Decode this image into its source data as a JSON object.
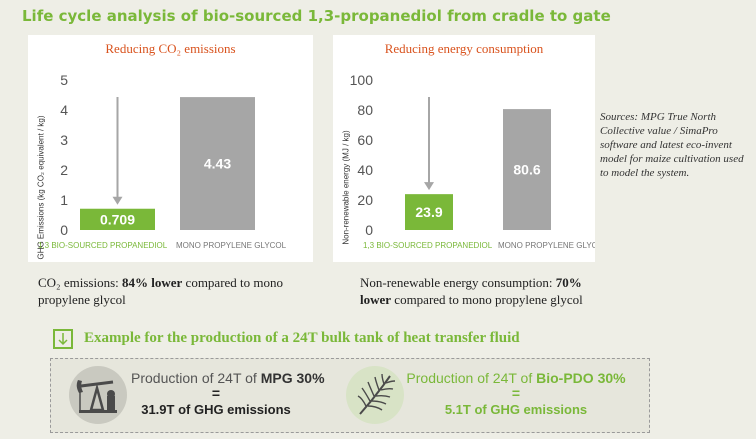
{
  "header": {
    "title": "Life cycle analysis of bio-sourced 1,3-propanediol from cradle to gate"
  },
  "chart_data": [
    {
      "type": "bar",
      "title": "Reducing CO₂ emissions",
      "ylabel": "GHG Emissions (kg CO₂ equivalent / kg)",
      "categories": [
        "1,3 BIO-SOURCED PROPANEDIOL",
        "MONO PROPYLENE GLYCOL"
      ],
      "values": [
        0.709,
        4.43
      ],
      "value_labels": [
        "0.709",
        "4.43"
      ],
      "ylim": [
        0,
        5
      ],
      "yticks": [
        "0",
        "1",
        "2",
        "3",
        "4",
        "5"
      ],
      "colors": [
        "#7ab839",
        "#a6a6a6"
      ],
      "grid": false
    },
    {
      "type": "bar",
      "title": "Reducing energy consumption",
      "ylabel": "Non-renewable energy (MJ / kg)",
      "categories": [
        "1,3 BIO-SOURCED PROPANEDIOL",
        "MONO PROPYLENE GLYCOL"
      ],
      "values": [
        23.9,
        80.6
      ],
      "value_labels": [
        "23.9",
        "80.6"
      ],
      "ylim": [
        0,
        100
      ],
      "yticks": [
        "0",
        "20",
        "40",
        "60",
        "80",
        "100"
      ],
      "colors": [
        "#7ab839",
        "#a6a6a6"
      ],
      "grid": false
    }
  ],
  "captions": {
    "co2_pre": "CO₂ emissions: ",
    "co2_bold": "84% lower",
    "co2_post": " compared to mono propylene glycol",
    "energy_pre": "Non-renewable energy consumption: ",
    "energy_bold": "70% lower",
    "energy_post": " compared to mono propylene glycol"
  },
  "sources": "Sources: MPG True North Collective value / SimaPro software and latest eco-invent model for maize cultivation used to model the system.",
  "example": {
    "title": "Example for the production of a 24T bulk tank of heat transfer fluid",
    "left": {
      "prefix": "Production of 24T of ",
      "product": "MPG 30%",
      "equals": "=",
      "result": "31.9T of GHG emissions",
      "icon": "oil-pump-icon"
    },
    "right": {
      "prefix": "Production of 24T of ",
      "product": "Bio-PDO 30%",
      "equals": "=",
      "result": "5.1T of GHG emissions",
      "icon": "palm-leaf-icon"
    }
  },
  "colors": {
    "green": "#7ab839",
    "gray": "#a6a6a6",
    "orange": "#d9531e"
  }
}
